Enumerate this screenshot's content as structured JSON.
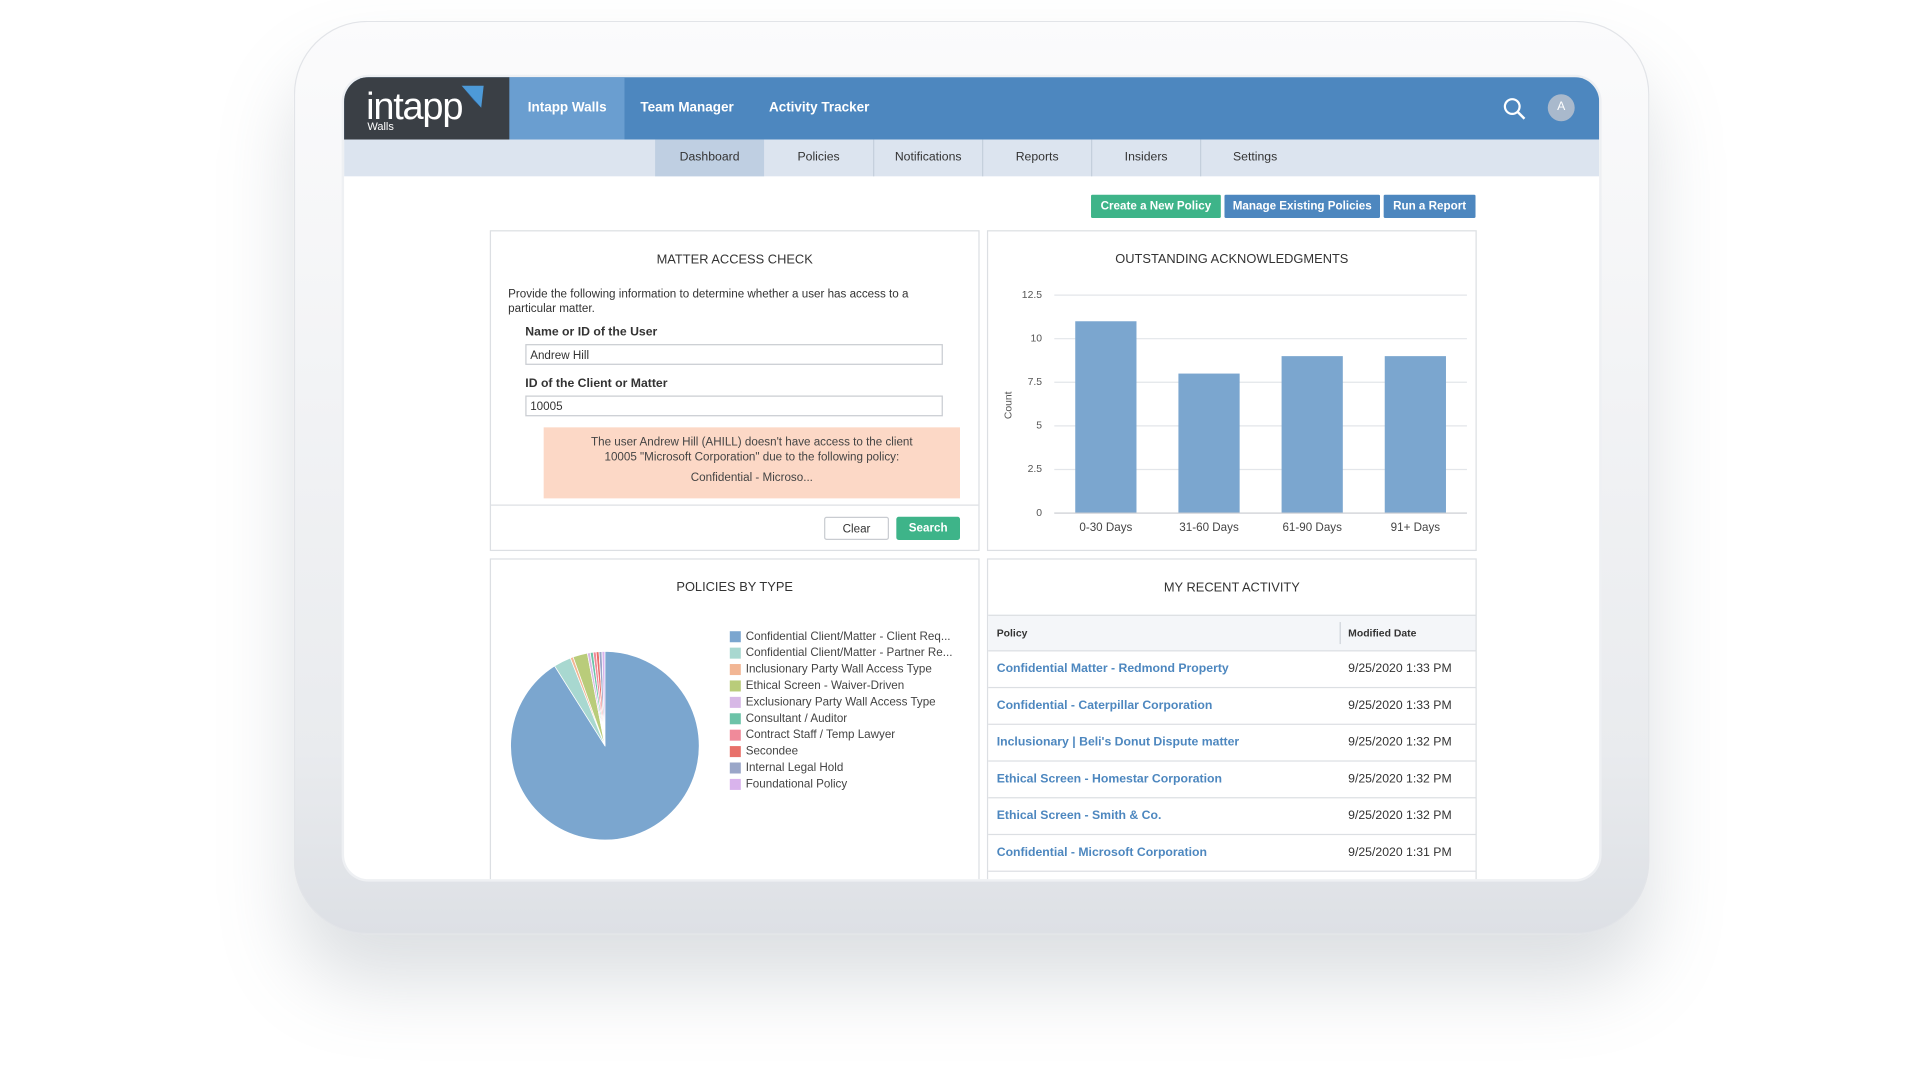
{
  "brand": {
    "name": "intapp",
    "product": "Walls"
  },
  "nav": {
    "apps": [
      "Intapp Walls",
      "Team Manager",
      "Activity Tracker"
    ],
    "avatar": "A"
  },
  "tabs": [
    "Dashboard",
    "Policies",
    "Notifications",
    "Reports",
    "Insiders",
    "Settings"
  ],
  "actions": [
    "Create a New Policy",
    "Manage Existing Policies",
    "Run a Report"
  ],
  "matter_access_check": {
    "title": "MATTER ACCESS CHECK",
    "description": "Provide the following information to determine whether a user has access to a particular matter.",
    "user_label": "Name or ID of the User",
    "user_value": "Andrew Hill",
    "matter_label": "ID of the Client or Matter",
    "matter_value": "10005",
    "result": "The user Andrew Hill (AHILL) doesn't have access to the client 10005 \"Microsoft Corporation\" due to the following policy:",
    "policy": "Confidential - Microso...",
    "buttons": [
      "Clear",
      "Search"
    ]
  },
  "chart_data": [
    {
      "type": "bar",
      "title": "OUTSTANDING ACKNOWLEDGMENTS",
      "y_label": "Count",
      "categories": [
        "0-30 Days",
        "31-60 Days",
        "61-90 Days",
        "91+ Days"
      ],
      "values": [
        11,
        8,
        9,
        9
      ],
      "color": "#7ba6cf",
      "ylim": [
        0,
        12.5
      ],
      "yticks": [
        0,
        2.5,
        5,
        7.5,
        10,
        12.5
      ],
      "grid": true
    },
    {
      "type": "pie",
      "title": "POLICIES BY TYPE",
      "categories": [
        "Confidential Client/Matter - Client Req...",
        "Confidential Client/Matter - Partner Re...",
        "Inclusionary Party Wall Access Type",
        "Ethical Screen - Waiver-Driven",
        "Exclusionary Party Wall Access Type",
        "Consultant / Auditor",
        "Contract Staff / Temp Lawyer",
        "Secondee",
        "Internal Legal Hold",
        "Foundational Policy"
      ],
      "values": [
        91.5,
        3,
        0.5,
        2.5,
        0.5,
        0.5,
        0.5,
        0.5,
        0.5,
        0.5
      ],
      "colors": [
        "#7ba6cf",
        "#a8d8d0",
        "#f2b694",
        "#b9cc7a",
        "#d7b8e6",
        "#6cc3a8",
        "#f08a9a",
        "#e8706a",
        "#9aa6c8",
        "#d9b3ec"
      ]
    }
  ],
  "recent_activity": {
    "title": "MY RECENT ACTIVITY",
    "columns": [
      "Policy",
      "Modified Date"
    ],
    "rows": [
      [
        "Confidential Matter - Redmond Property",
        "9/25/2020 1:33 PM"
      ],
      [
        "Confidential - Caterpillar Corporation",
        "9/25/2020 1:33 PM"
      ],
      [
        "Inclusionary | Beli's Donut Dispute matter",
        "9/25/2020 1:32 PM"
      ],
      [
        "Ethical Screen - Homestar Corporation",
        "9/25/2020 1:32 PM"
      ],
      [
        "Ethical Screen - Smith & Co.",
        "9/25/2020 1:32 PM"
      ],
      [
        "Confidential - Microsoft Corporation",
        "9/25/2020 1:31 PM"
      ]
    ]
  }
}
